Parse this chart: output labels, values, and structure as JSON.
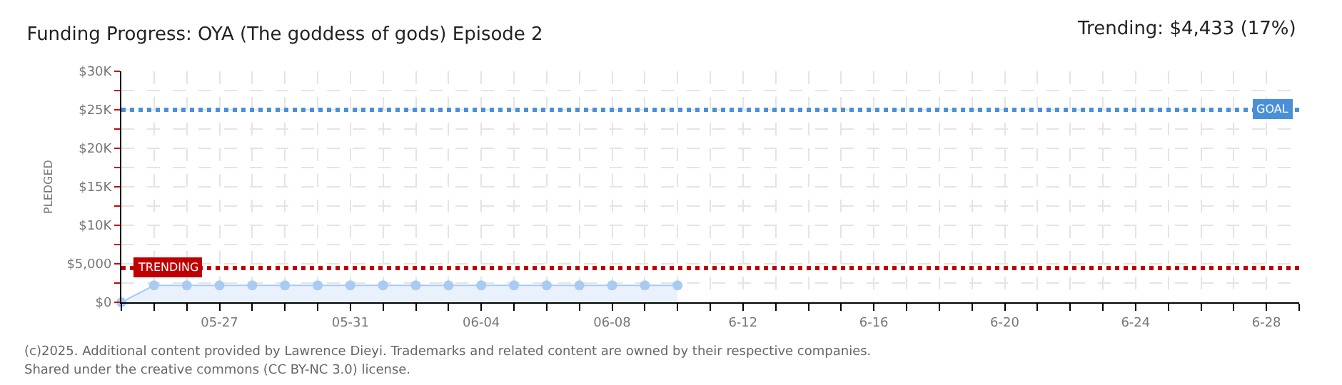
{
  "chart_data": {
    "type": "area",
    "title": "Funding Progress: OYA (The goddess of gods) Episode 2",
    "subtitle": "Trending: $4,433 (17%)",
    "ylabel": "PLEDGED",
    "x": [
      "--05-24",
      "--05-25",
      "--05-26",
      "--05-27",
      "--05-28",
      "--05-29",
      "--05-30",
      "--05-31",
      "--06-01",
      "--06-02",
      "--06-03",
      "--06-04",
      "--06-05",
      "--06-06",
      "--06-07",
      "--06-08",
      "--06-09",
      "--06-10"
    ],
    "series": [
      {
        "color": "#a9cbf2",
        "values": [
          0,
          2200,
          2200,
          2200,
          2200,
          2200,
          2200,
          2200,
          2200,
          2200,
          2200,
          2200,
          2200,
          2200,
          2200,
          2200,
          2200,
          2200
        ]
      }
    ],
    "marker": "circle",
    "xlim": [
      "--05-24",
      "--06-29"
    ],
    "xticks": [
      {
        "value": "--05-24",
        "label": null
      },
      {
        "value": "--05-25",
        "label": null
      },
      {
        "value": "--05-26",
        "label": null
      },
      {
        "value": "--05-27",
        "label": "05-27"
      },
      {
        "value": "--05-28",
        "label": null
      },
      {
        "value": "--05-29",
        "label": null
      },
      {
        "value": "--05-30",
        "label": null
      },
      {
        "value": "--05-31",
        "label": "05-31"
      },
      {
        "value": "--06-01",
        "label": null
      },
      {
        "value": "--06-02",
        "label": null
      },
      {
        "value": "--06-03",
        "label": null
      },
      {
        "value": "--06-04",
        "label": "06-04"
      },
      {
        "value": "--06-05",
        "label": null
      },
      {
        "value": "--06-06",
        "label": null
      },
      {
        "value": "--06-07",
        "label": null
      },
      {
        "value": "--06-08",
        "label": "06-08"
      },
      {
        "value": "--06-09",
        "label": null
      },
      {
        "value": "--06-10",
        "label": null
      },
      {
        "value": "--06-11",
        "label": null
      },
      {
        "value": "--06-12",
        "label": "6-12"
      },
      {
        "value": "--06-13",
        "label": null
      },
      {
        "value": "--06-14",
        "label": null
      },
      {
        "value": "--06-15",
        "label": null
      },
      {
        "value": "--06-16",
        "label": "6-16"
      },
      {
        "value": "--06-17",
        "label": null
      },
      {
        "value": "--06-18",
        "label": null
      },
      {
        "value": "--06-19",
        "label": null
      },
      {
        "value": "--06-20",
        "label": "6-20"
      },
      {
        "value": "--06-21",
        "label": null
      },
      {
        "value": "--06-22",
        "label": null
      },
      {
        "value": "--06-23",
        "label": null
      },
      {
        "value": "--06-24",
        "label": "6-24"
      },
      {
        "value": "--06-25",
        "label": null
      },
      {
        "value": "--06-26",
        "label": null
      },
      {
        "value": "--06-27",
        "label": null
      },
      {
        "value": "--06-28",
        "label": "6-28"
      },
      {
        "value": "--06-29",
        "label": null
      }
    ],
    "ylim": [
      0,
      30000
    ],
    "yticks": [
      {
        "value": 0,
        "label": "$0"
      },
      {
        "value": 2500,
        "label": null
      },
      {
        "value": 5000,
        "label": "$5,000"
      },
      {
        "value": 7500,
        "label": null
      },
      {
        "value": 10000,
        "label": "$10K"
      },
      {
        "value": 12500,
        "label": null
      },
      {
        "value": 15000,
        "label": "$15K"
      },
      {
        "value": 17500,
        "label": null
      },
      {
        "value": 20000,
        "label": "$20K"
      },
      {
        "value": 22500,
        "label": null
      },
      {
        "value": 25000,
        "label": "$25K"
      },
      {
        "value": 27500,
        "label": null
      },
      {
        "value": 30000,
        "label": "$30K"
      }
    ],
    "grid": true,
    "ref_lines": [
      {
        "axis": "y",
        "value": 25000,
        "label": "GOAL",
        "color": "#4a90d9",
        "line_style": "dotted"
      },
      {
        "axis": "y",
        "value": 4433,
        "label": "TRENDING",
        "color": "#c00000",
        "line_style": "dotted"
      }
    ],
    "annotations": [
      "(c)2025. Additional content provided by Lawrence Dieyi. Trademarks and related content are owned by their respective companies.",
      "Shared under the creative commons (CC BY-NC 3.0) license."
    ]
  }
}
